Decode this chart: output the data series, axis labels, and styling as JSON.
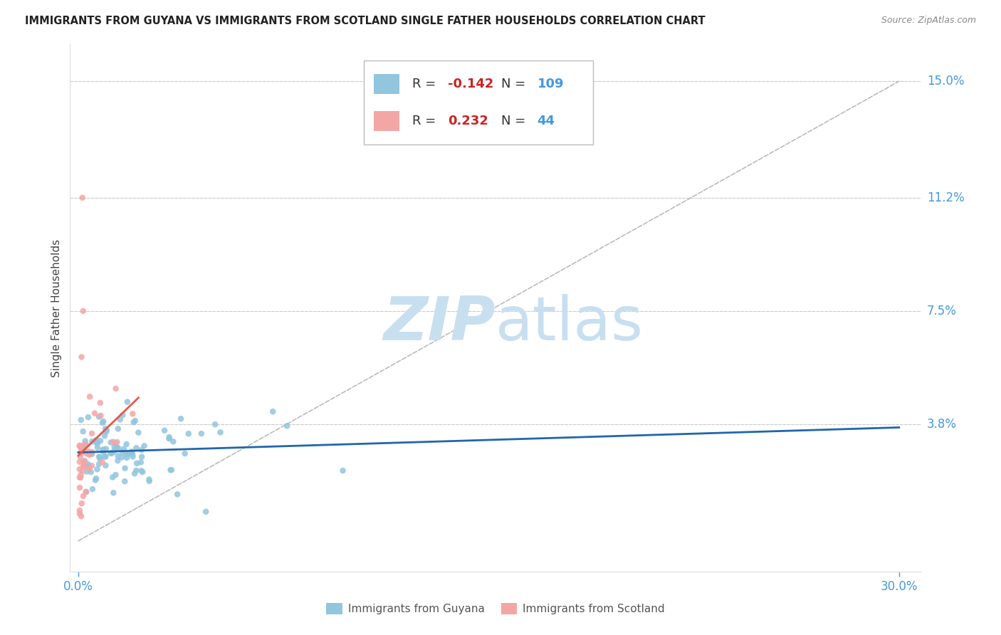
{
  "title": "IMMIGRANTS FROM GUYANA VS IMMIGRANTS FROM SCOTLAND SINGLE FATHER HOUSEHOLDS CORRELATION CHART",
  "source": "Source: ZipAtlas.com",
  "ylabel": "Single Father Households",
  "xlabel_guyana": "Immigrants from Guyana",
  "xlabel_scotland": "Immigrants from Scotland",
  "xlim": [
    -0.003,
    0.308
  ],
  "ylim": [
    -0.01,
    0.162
  ],
  "xtick_positions": [
    0.0,
    0.3
  ],
  "xtick_labels": [
    "0.0%",
    "30.0%"
  ],
  "ytick_positions": [
    0.038,
    0.075,
    0.112,
    0.15
  ],
  "ytick_labels": [
    "3.8%",
    "7.5%",
    "11.2%",
    "15.0%"
  ],
  "r_guyana": -0.142,
  "n_guyana": 109,
  "r_scotland": 0.232,
  "n_scotland": 44,
  "color_guyana": "#92C5DE",
  "color_scotland": "#F4A6A6",
  "trend_color_guyana": "#2166AC",
  "trend_color_scotland": "#E8584A",
  "background_color": "#FFFFFF",
  "grid_color": "#CCCCCC",
  "title_fontsize": 10.5,
  "axis_label_color": "#4499DD",
  "watermark_color": "#C8DFF0",
  "ref_line_color": "#BBBBBB"
}
